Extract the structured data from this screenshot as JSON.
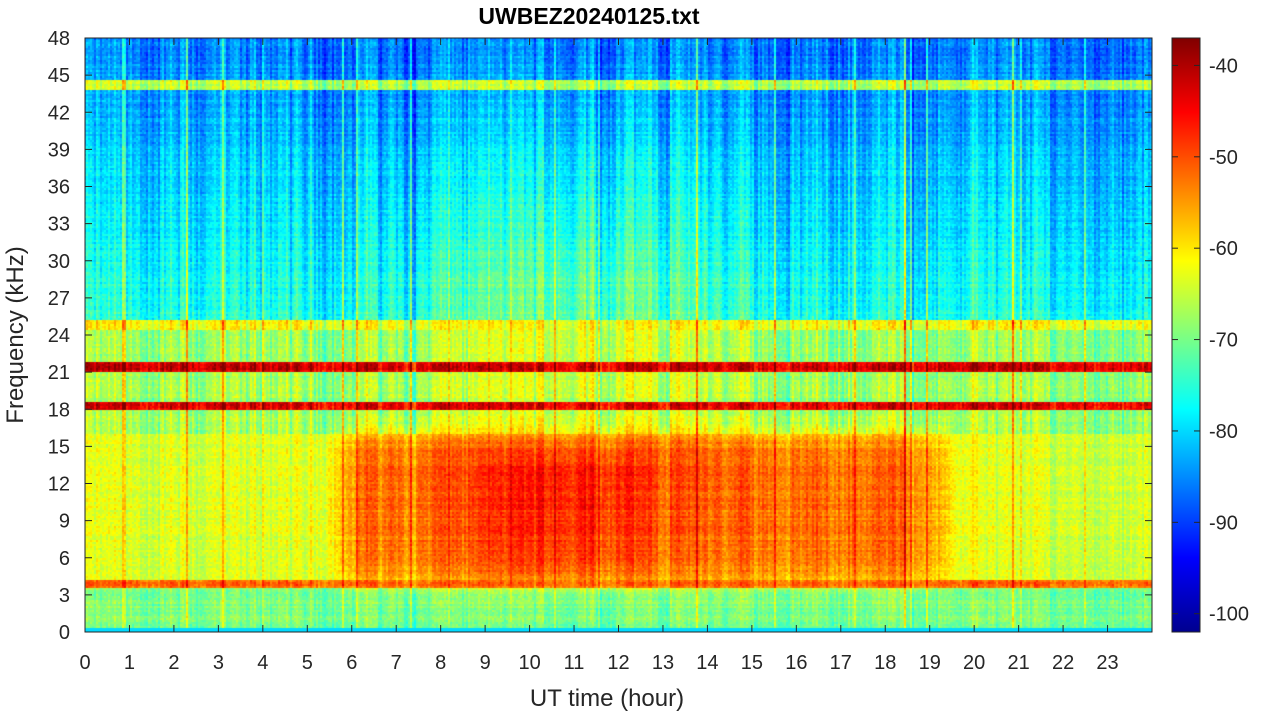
{
  "chart_data": {
    "type": "heatmap",
    "title": "UWBEZ20240125.txt",
    "xlabel": "UT time (hour)",
    "ylabel": "Frequency (kHz)",
    "xlim": [
      0,
      24
    ],
    "ylim": [
      0,
      48
    ],
    "x_ticks": [
      0,
      1,
      2,
      3,
      4,
      5,
      6,
      7,
      8,
      9,
      10,
      11,
      12,
      13,
      14,
      15,
      16,
      17,
      18,
      19,
      20,
      21,
      22,
      23
    ],
    "y_ticks": [
      0,
      3,
      6,
      9,
      12,
      15,
      18,
      21,
      24,
      27,
      30,
      33,
      36,
      39,
      42,
      45,
      48
    ],
    "colorbar": {
      "colormap": "jet",
      "range": [
        -102,
        -37
      ],
      "ticks": [
        -40,
        -50,
        -60,
        -70,
        -80,
        -90,
        -100
      ],
      "placement": "right"
    },
    "features": {
      "persistent_bands_khz": [
        {
          "freq": 3.9,
          "level": -52
        },
        {
          "freq": 18.3,
          "level": -44
        },
        {
          "freq": 21.4,
          "level": -43
        },
        {
          "freq": 24.8,
          "level": -62
        },
        {
          "freq": 44.2,
          "level": -66
        }
      ],
      "daytime_enhancement": {
        "time_hours": [
          5.7,
          19.3
        ],
        "freq_khz": [
          4,
          16
        ],
        "peak_level": -50
      }
    },
    "grid": false
  }
}
